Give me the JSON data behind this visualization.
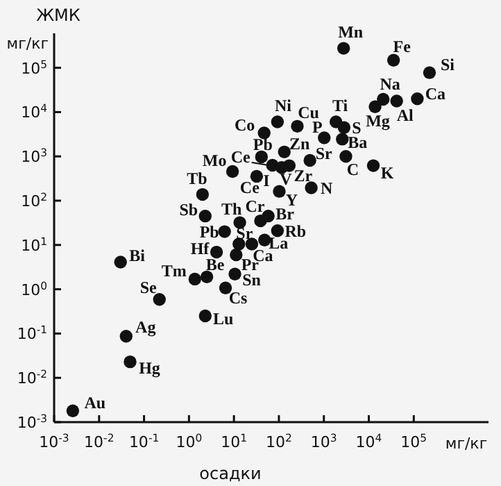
{
  "chart_data": {
    "type": "scatter",
    "xlabel": "осадки",
    "ylabel": "ЖМК",
    "log": "xy",
    "grid": false,
    "marker": "circle",
    "color": "#111111",
    "xlim": [
      0.001,
      4600000
    ],
    "ylim": [
      0.001,
      600000
    ],
    "xticks": [
      {
        "value": 0.001,
        "label": "10$^{-3}$"
      },
      {
        "value": 0.01,
        "label": "10$^{-2}$"
      },
      {
        "value": 0.1,
        "label": "10$^{-1}$"
      },
      {
        "value": 1,
        "label": "10$^{0}$"
      },
      {
        "value": 10,
        "label": "10$^{1}$"
      },
      {
        "value": 100,
        "label": "10$^{2}$"
      },
      {
        "value": 1000,
        "label": "10$^{3}$"
      },
      {
        "value": 10000,
        "label": "10$^{4}$"
      },
      {
        "value": 100000,
        "label": "10$^{5}$"
      }
    ],
    "yticks": [
      {
        "value": 0.001,
        "label": "10$^{-3}$"
      },
      {
        "value": 0.01,
        "label": "10$^{-2}$"
      },
      {
        "value": 0.1,
        "label": "10$^{-1}$"
      },
      {
        "value": 1,
        "label": "10$^{0}$"
      },
      {
        "value": 10,
        "label": "10$^{1}$"
      },
      {
        "value": 100,
        "label": "10$^{2}$"
      },
      {
        "value": 1000,
        "label": "10$^{3}$"
      },
      {
        "value": 10000,
        "label": "10$^{4}$"
      },
      {
        "value": 100000,
        "label": "10$^{5}$"
      }
    ],
    "x": [
      2750,
      35500,
      224000,
      20900,
      13800,
      41700,
      120000,
      1860,
      2820,
      2570,
      3090,
      12600,
      1020,
      257,
      93,
      47,
      41,
      132,
      490,
      72,
      115,
      170,
      9.3,
      32,
      102,
      525,
      2.0,
      2.3,
      13.5,
      39,
      58,
      6.2,
      93,
      12.9,
      48,
      4.1,
      25,
      11.2,
      10.5,
      2.5,
      1.35,
      6.5,
      2.3,
      0.03,
      0.22,
      0.04,
      0.049,
      0.0026
    ],
    "values": [
      275000,
      148000,
      77600,
      19500,
      13200,
      17800,
      20000,
      6030,
      4470,
      2450,
      1000,
      617,
      2630,
      4790,
      6030,
      3390,
      977,
      1260,
      813,
      631,
      562,
      617,
      457,
      355,
      162,
      195,
      138,
      45,
      32,
      35,
      45,
      20,
      21,
      10.5,
      12.9,
      6.9,
      10.5,
      6.0,
      2.2,
      1.9,
      1.7,
      1.07,
      0.25,
      4.1,
      0.59,
      0.087,
      0.023,
      0.0018
    ],
    "annotations": [
      "мг/кг",
      "мг/кг",
      {
        "text": "Mn",
        "x": 2750,
        "y": 275000
      },
      {
        "text": "Fe",
        "x": 35500,
        "y": 148000
      },
      {
        "text": "Si",
        "x": 224000,
        "y": 77600
      },
      {
        "text": "Na",
        "x": 20900,
        "y": 19500
      },
      {
        "text": "Mg",
        "x": 13800,
        "y": 13200
      },
      {
        "text": "Al",
        "x": 41700,
        "y": 17800
      },
      {
        "text": "Ca",
        "x": 120000,
        "y": 20000
      },
      {
        "text": "Ti",
        "x": 1860,
        "y": 6030
      },
      {
        "text": "S",
        "x": 2820,
        "y": 4470
      },
      {
        "text": "Ba",
        "x": 2570,
        "y": 2450
      },
      {
        "text": "C",
        "x": 3090,
        "y": 1000
      },
      {
        "text": "K",
        "x": 12600,
        "y": 617
      },
      {
        "text": "P",
        "x": 1020,
        "y": 2630
      },
      {
        "text": "Cu",
        "x": 257,
        "y": 4790
      },
      {
        "text": "Ni",
        "x": 93,
        "y": 6030
      },
      {
        "text": "Co",
        "x": 47,
        "y": 3390
      },
      {
        "text": "Pb",
        "x": 41,
        "y": 977
      },
      {
        "text": "Zn",
        "x": 132,
        "y": 1260
      },
      {
        "text": "Sr",
        "x": 490,
        "y": 813
      },
      {
        "text": "Ce",
        "x": 72,
        "y": 631
      },
      {
        "text": "V",
        "x": 115,
        "y": 562
      },
      {
        "text": "Zr",
        "x": 170,
        "y": 617
      },
      {
        "text": "Mo",
        "x": 9.3,
        "y": 457
      },
      {
        "text": "I",
        "x": 32,
        "y": 355
      },
      {
        "text": "Ce",
        "x": 32,
        "y": 355
      },
      {
        "text": "Y",
        "x": 102,
        "y": 162
      },
      {
        "text": "N",
        "x": 525,
        "y": 195
      },
      {
        "text": "Tb",
        "x": 2.0,
        "y": 138
      },
      {
        "text": "Sb",
        "x": 2.3,
        "y": 45
      },
      {
        "text": "Th",
        "x": 13.5,
        "y": 32
      },
      {
        "text": "Cr",
        "x": 39,
        "y": 35
      },
      {
        "text": "Br",
        "x": 58,
        "y": 45
      },
      {
        "text": "Pb",
        "x": 6.2,
        "y": 20
      },
      {
        "text": "Rb",
        "x": 93,
        "y": 21
      },
      {
        "text": "Sr",
        "x": 12.9,
        "y": 10.5
      },
      {
        "text": "La",
        "x": 48,
        "y": 12.9
      },
      {
        "text": "Hf",
        "x": 4.1,
        "y": 6.9
      },
      {
        "text": "Ca",
        "x": 25,
        "y": 10.5
      },
      {
        "text": "Pr",
        "x": 11.2,
        "y": 6.0
      },
      {
        "text": "Sn",
        "x": 10.5,
        "y": 2.2
      },
      {
        "text": "Be",
        "x": 2.5,
        "y": 1.9
      },
      {
        "text": "Tm",
        "x": 1.35,
        "y": 1.7
      },
      {
        "text": "Cs",
        "x": 6.5,
        "y": 1.07
      },
      {
        "text": "Lu",
        "x": 2.3,
        "y": 0.25
      },
      {
        "text": "Bi",
        "x": 0.03,
        "y": 4.1
      },
      {
        "text": "Se",
        "x": 0.22,
        "y": 0.59
      },
      {
        "text": "Ag",
        "x": 0.04,
        "y": 0.087
      },
      {
        "text": "Hg",
        "x": 0.049,
        "y": 0.023
      },
      {
        "text": "Au",
        "x": 0.0026,
        "y": 0.0018
      }
    ]
  }
}
